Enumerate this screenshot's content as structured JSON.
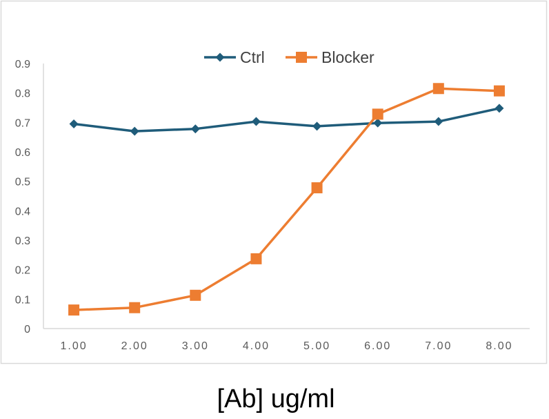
{
  "chart_data": {
    "type": "line",
    "title": "",
    "xlabel": "[Ab] ug/ml",
    "ylabel": "",
    "categories": [
      "1.00",
      "2.00",
      "3.00",
      "4.00",
      "5.00",
      "6.00",
      "7.00",
      "8.00"
    ],
    "ylim": [
      0,
      0.9
    ],
    "yticks": [
      "0",
      "0.1",
      "0.2",
      "0.3",
      "0.4",
      "0.5",
      "0.6",
      "0.7",
      "0.8",
      "0.9"
    ],
    "grid": false,
    "legend_position": "top",
    "series": [
      {
        "name": "Ctrl",
        "color": "#1F5C7A",
        "marker": "diamond",
        "values": [
          0.695,
          0.67,
          0.678,
          0.703,
          0.687,
          0.698,
          0.703,
          0.748
        ]
      },
      {
        "name": "Blocker",
        "color": "#ED7D31",
        "marker": "square",
        "values": [
          0.063,
          0.071,
          0.113,
          0.237,
          0.478,
          0.728,
          0.815,
          0.807
        ]
      }
    ]
  }
}
